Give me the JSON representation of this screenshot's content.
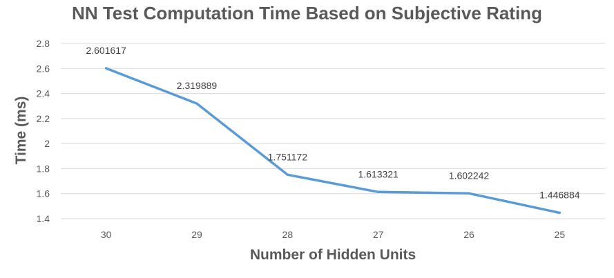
{
  "chart_data": {
    "type": "line",
    "title": "NN Test Computation Time Based on Subjective Rating",
    "xlabel": "Number of Hidden Units",
    "ylabel": "Time (ms)",
    "categories": [
      "30",
      "29",
      "28",
      "27",
      "26",
      "25"
    ],
    "series": [
      {
        "values": [
          2.601617,
          2.319889,
          1.751172,
          1.613321,
          1.602242,
          1.446884
        ],
        "data_labels": [
          "2.601617",
          "2.319889",
          "1.751172",
          "1.613321",
          "1.602242",
          "1.446884"
        ],
        "color": "#5B9BD5"
      }
    ],
    "ylim": [
      1.4,
      2.8
    ],
    "yticks": [
      "1.4",
      "1.6",
      "1.8",
      "2",
      "2.2",
      "2.4",
      "2.6",
      "2.8"
    ],
    "grid": true,
    "legend": "none"
  }
}
